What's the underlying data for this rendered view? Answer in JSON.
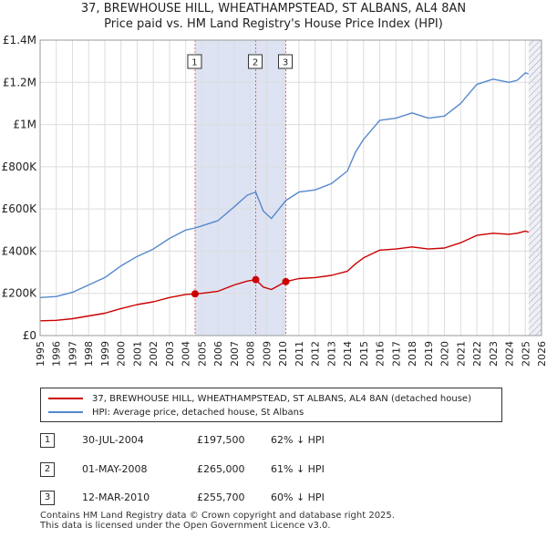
{
  "title_line1": "37, BREWHOUSE HILL, WHEATHAMPSTEAD, ST ALBANS, AL4 8AN",
  "title_line2": "Price paid vs. HM Land Registry's House Price Index (HPI)",
  "chart_data": {
    "type": "line",
    "title": "37, BREWHOUSE HILL, WHEATHAMPSTEAD, ST ALBANS, AL4 8AN — Price paid vs. HM Land Registry's House Price Index (HPI)",
    "xlabel": "",
    "ylabel": "",
    "xlim": [
      1995,
      2026
    ],
    "ylim": [
      0,
      1400000
    ],
    "x_ticks": [
      1995,
      1996,
      1997,
      1998,
      1999,
      2000,
      2001,
      2002,
      2003,
      2004,
      2005,
      2006,
      2007,
      2008,
      2009,
      2010,
      2011,
      2012,
      2013,
      2014,
      2015,
      2016,
      2017,
      2018,
      2019,
      2020,
      2021,
      2022,
      2023,
      2024,
      2025,
      2026
    ],
    "y_ticks": [
      0,
      200000,
      400000,
      600000,
      800000,
      1000000,
      1200000,
      1400000
    ],
    "y_tick_labels": [
      "£0",
      "£200K",
      "£400K",
      "£600K",
      "£800K",
      "£1M",
      "£1.2M",
      "£1.4M"
    ],
    "grid": true,
    "series": [
      {
        "name": "37, BREWHOUSE HILL, WHEATHAMPSTEAD, ST ALBANS, AL4 8AN (detached house)",
        "color": "#cc0000",
        "x": [
          1995.0,
          1996.0,
          1997.0,
          1998.0,
          1999.0,
          2000.0,
          2001.0,
          2002.0,
          2003.0,
          2004.0,
          2004.58,
          2005.0,
          2006.0,
          2007.0,
          2007.8,
          2008.33,
          2008.8,
          2009.3,
          2010.19,
          2011.0,
          2012.0,
          2013.0,
          2014.0,
          2014.5,
          2015.0,
          2016.0,
          2017.0,
          2018.0,
          2019.0,
          2020.0,
          2021.0,
          2022.0,
          2023.0,
          2024.0,
          2024.5,
          2025.0,
          2025.2
        ],
        "values": [
          70000,
          72000,
          80000,
          93000,
          106000,
          128000,
          147000,
          160000,
          180000,
          195000,
          197500,
          200000,
          210000,
          240000,
          258000,
          265000,
          230000,
          218000,
          255700,
          270000,
          275000,
          285000,
          305000,
          340000,
          368000,
          405000,
          410000,
          420000,
          410000,
          415000,
          440000,
          475000,
          485000,
          480000,
          485000,
          495000,
          490000
        ]
      },
      {
        "name": "HPI: Average price, detached house, St Albans",
        "color": "#5588cc",
        "x": [
          1995.0,
          1996.0,
          1997.0,
          1998.0,
          1999.0,
          2000.0,
          2001.0,
          2002.0,
          2003.0,
          2004.0,
          2004.58,
          2005.0,
          2006.0,
          2007.0,
          2007.8,
          2008.33,
          2008.8,
          2009.3,
          2010.19,
          2011.0,
          2012.0,
          2013.0,
          2014.0,
          2014.5,
          2015.0,
          2016.0,
          2017.0,
          2018.0,
          2019.0,
          2020.0,
          2021.0,
          2022.0,
          2023.0,
          2024.0,
          2024.5,
          2025.0,
          2025.2
        ],
        "values": [
          180000,
          185000,
          205000,
          240000,
          275000,
          330000,
          375000,
          410000,
          460000,
          500000,
          510000,
          520000,
          545000,
          610000,
          665000,
          680000,
          590000,
          555000,
          640000,
          680000,
          690000,
          720000,
          780000,
          870000,
          930000,
          1020000,
          1030000,
          1055000,
          1030000,
          1040000,
          1100000,
          1190000,
          1215000,
          1200000,
          1210000,
          1245000,
          1240000
        ]
      }
    ],
    "sales": [
      {
        "label": "1",
        "year": 2004.58,
        "value": 197500
      },
      {
        "label": "2",
        "year": 2008.33,
        "value": 265000
      },
      {
        "label": "3",
        "year": 2010.19,
        "value": 255700
      }
    ],
    "shaded_spans": [
      [
        2004.58,
        2008.33
      ],
      [
        2008.33,
        2010.19
      ],
      [
        2025.2,
        2026
      ]
    ]
  },
  "legend": {
    "property_label": "37, BREWHOUSE HILL, WHEATHAMPSTEAD, ST ALBANS, AL4 8AN (detached house)",
    "hpi_label": "HPI: Average price, detached house, St Albans"
  },
  "sales_table": [
    {
      "num": "1",
      "date": "30-JUL-2004",
      "price": "£197,500",
      "hpi": "62% ↓ HPI"
    },
    {
      "num": "2",
      "date": "01-MAY-2008",
      "price": "£265,000",
      "hpi": "61% ↓ HPI"
    },
    {
      "num": "3",
      "date": "12-MAR-2010",
      "price": "£255,700",
      "hpi": "60% ↓ HPI"
    }
  ],
  "footer": {
    "line1": "Contains HM Land Registry data © Crown copyright and database right 2025.",
    "line2": "This data is licensed under the Open Government Licence v3.0."
  }
}
